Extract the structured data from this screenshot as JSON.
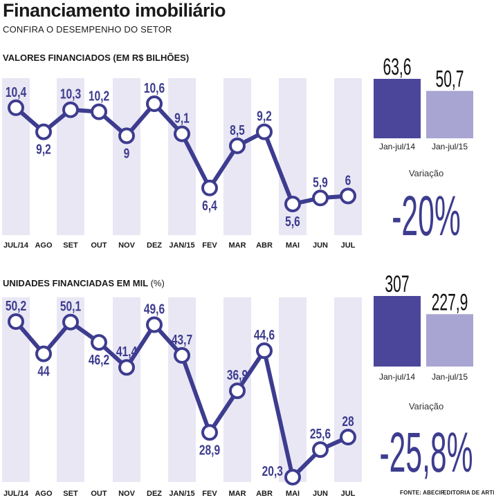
{
  "title": "Financiamento imobiliário",
  "subtitle": "CONFIRA O DESEMPENHO DO SETOR",
  "colors": {
    "line": "#3d3c8f",
    "stripe": "#e9e7f4",
    "bar14": "#4b469a",
    "bar15": "#a8a5d2",
    "variation": "#3d3c8f"
  },
  "chart_data": [
    {
      "type": "line",
      "title": "VALORES FINANCIADOS (EM R$ BILHÕES)",
      "categories": [
        "JUL/14",
        "AGO",
        "SET",
        "OUT",
        "NOV",
        "DEZ",
        "JAN/15",
        "FEV",
        "MAR",
        "ABR",
        "MAI",
        "JUN",
        "JUL"
      ],
      "values": [
        10.4,
        9.2,
        10.3,
        10.2,
        9,
        10.6,
        9.1,
        6.4,
        8.5,
        9.2,
        5.6,
        5.9,
        6
      ],
      "value_labels": [
        "10,4",
        "9,2",
        "10,3",
        "10,2",
        "9",
        "10,6",
        "9,1",
        "6,4",
        "8,5",
        "9,2",
        "5,6",
        "5,9",
        "6"
      ],
      "label_position": [
        "above",
        "below",
        "above",
        "above",
        "below",
        "above",
        "above",
        "below",
        "above",
        "above",
        "below",
        "above",
        "above"
      ],
      "ylim": [
        4.5,
        11.5
      ],
      "grid": false
    },
    {
      "type": "line",
      "title": "UNIDADES FINANCIADAS EM MIL",
      "title_suffix": "(%)",
      "categories": [
        "JUL/14",
        "AGO",
        "SET",
        "OUT",
        "NOV",
        "DEZ",
        "JAN/15",
        "FEV",
        "MAR",
        "ABR",
        "MAI",
        "JUN",
        "JUL"
      ],
      "values": [
        50.2,
        44,
        50.1,
        46.2,
        41.4,
        49.6,
        43.7,
        28.9,
        36.9,
        44.6,
        20.3,
        25.6,
        28
      ],
      "value_labels": [
        "50,2",
        "44",
        "50,1",
        "46,2",
        "41,4",
        "49,6",
        "43,7",
        "28,9",
        "36,9",
        "44,6",
        "20,3",
        "25,6",
        "28"
      ],
      "label_position": [
        "above",
        "below",
        "above",
        "below",
        "above",
        "above",
        "above",
        "below",
        "above",
        "above",
        "left",
        "above",
        "above"
      ],
      "ylim": [
        18,
        56
      ],
      "grid": false
    },
    {
      "type": "bar",
      "categories": [
        "Jan-jul/14",
        "Jan-jul/15"
      ],
      "values": [
        63.6,
        50.7
      ],
      "value_labels": [
        "63,6",
        "50,7"
      ],
      "variation_label": "Variação",
      "variation": "-20%"
    },
    {
      "type": "bar",
      "categories": [
        "Jan-jul/14",
        "Jan-jul/15"
      ],
      "values": [
        307,
        227.9
      ],
      "value_labels": [
        "307",
        "227,9"
      ],
      "variation_label": "Variação",
      "variation": "-25,8%"
    }
  ],
  "footer": {
    "source": "FONTE: ABECIP",
    "credit": "EDITORIA DE ARTE"
  }
}
